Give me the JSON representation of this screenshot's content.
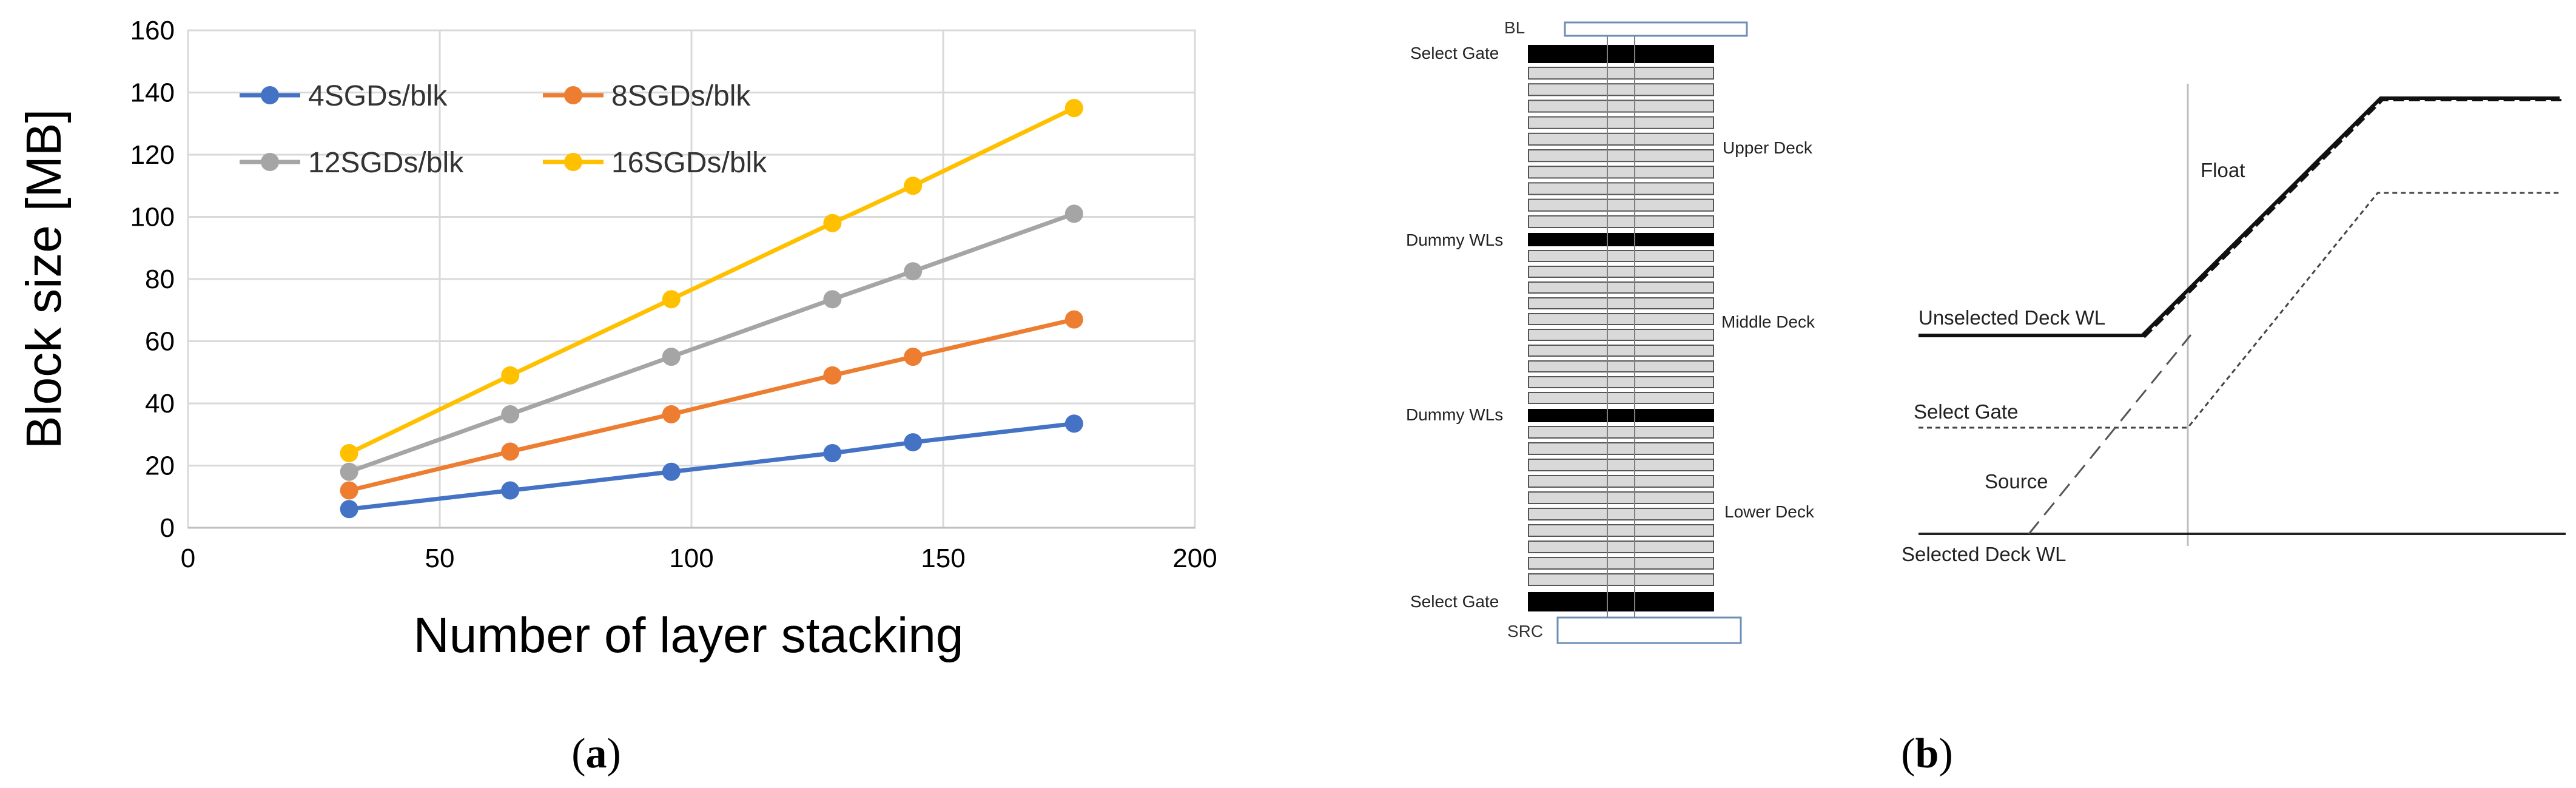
{
  "figure": {
    "panel_a": {
      "caption_open": "(",
      "caption_letter": "a",
      "caption_close": ")"
    },
    "panel_b": {
      "caption_open": "(",
      "caption_letter": "b",
      "caption_close": ")",
      "stack": {
        "top_label": "BL",
        "select_gate_top": "Select Gate",
        "upper_deck": "Upper Deck",
        "dummy_wls_1": "Dummy WLs",
        "middle_deck": "Middle Deck",
        "dummy_wls_2": "Dummy WLs",
        "lower_deck": "Lower Deck",
        "select_gate_bottom": "Select Gate",
        "bottom_label": "SRC"
      },
      "waveform": {
        "float_label": "Float",
        "unselected_label": "Unselected Deck WL",
        "select_gate_label": "Select Gate",
        "source_label": "Source",
        "selected_label": "Selected Deck WL"
      }
    }
  },
  "chart_data": {
    "type": "line",
    "title": "",
    "xlabel": "Number of layer stacking",
    "ylabel": "Block size [MB]",
    "xlim": [
      0,
      200
    ],
    "ylim": [
      0,
      160
    ],
    "xticks": [
      0,
      50,
      100,
      150,
      200
    ],
    "yticks": [
      0,
      20,
      40,
      60,
      80,
      100,
      120,
      140,
      160
    ],
    "grid": true,
    "legend_position": "top-left",
    "x": [
      32,
      64,
      96,
      128,
      144,
      176
    ],
    "series": [
      {
        "name": "4SGDs/blk",
        "color": "#4472C4",
        "values": [
          6,
          12,
          18,
          24,
          27.5,
          33.5
        ]
      },
      {
        "name": "8SGDs/blk",
        "color": "#ED7D31",
        "values": [
          12,
          24.5,
          36.5,
          49,
          55,
          67
        ]
      },
      {
        "name": "12SGDs/blk",
        "color": "#A5A5A5",
        "values": [
          18,
          36.5,
          55,
          73.5,
          82.5,
          101
        ]
      },
      {
        "name": "16SGDs/blk",
        "color": "#FFC000",
        "values": [
          24,
          49,
          73.5,
          98,
          110,
          135
        ]
      }
    ]
  }
}
